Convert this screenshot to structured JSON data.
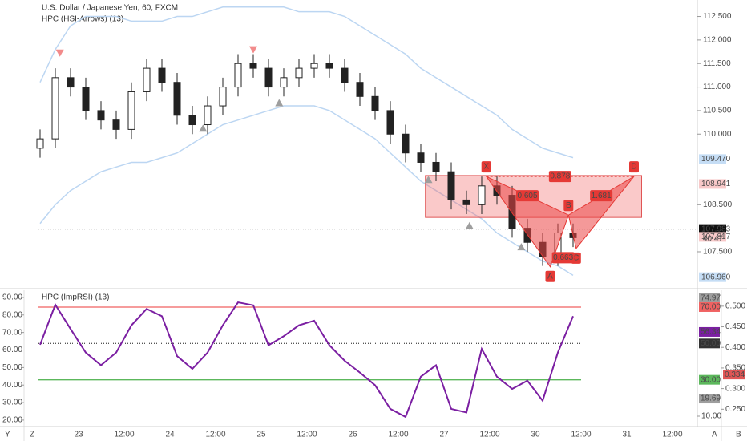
{
  "chart_data": [
    {
      "type": "candlestick",
      "title": "U.S. Dollar / Japanese Yen, 60, FXCM",
      "subtitle": "HPC (HSI-Arrows) (13)",
      "categories": [
        "23",
        "12:00",
        "24",
        "12:00",
        "25",
        "12:00",
        "26",
        "12:00",
        "27",
        "12:00",
        "30",
        "12:00",
        "31",
        "12:00"
      ],
      "ylim": [
        106.75,
        112.85
      ],
      "yticks": [
        {
          "value": 112.5,
          "label": "112.500"
        },
        {
          "value": 112,
          "label": "112.000"
        },
        {
          "value": 111.5,
          "label": "111.500"
        },
        {
          "value": 111,
          "label": "111.000"
        },
        {
          "value": 110.5,
          "label": "110.500"
        },
        {
          "value": 110,
          "label": "110.000"
        },
        {
          "value": 108.5,
          "label": "108.500"
        },
        {
          "value": 107.5,
          "label": "107.500"
        }
      ],
      "open": [
        109.7,
        109.9,
        111.2,
        111.0,
        110.5,
        110.3,
        110.1,
        110.9,
        111.4,
        111.1,
        110.4,
        110.2,
        110.6,
        111.0,
        111.5,
        111.4,
        111.0,
        111.2,
        111.4,
        111.5,
        111.4,
        111.1,
        110.8,
        110.5,
        110.0,
        109.6,
        109.4,
        109.2,
        108.6,
        108.5,
        108.9,
        108.7,
        108.0,
        107.7,
        107.4,
        107.9
      ],
      "high": [
        110.1,
        111.4,
        111.4,
        111.2,
        110.7,
        110.5,
        111.1,
        111.6,
        111.6,
        111.3,
        110.6,
        110.8,
        111.2,
        111.7,
        111.7,
        111.6,
        111.4,
        111.6,
        111.7,
        111.7,
        111.6,
        111.3,
        111.0,
        110.7,
        110.2,
        109.8,
        109.6,
        109.4,
        108.8,
        109.1,
        109.1,
        108.9,
        108.2,
        107.9,
        108.1,
        108.1
      ],
      "low": [
        109.5,
        109.7,
        110.8,
        110.3,
        110.1,
        109.9,
        109.9,
        110.7,
        110.9,
        110.2,
        110.0,
        110.0,
        110.4,
        110.8,
        111.2,
        110.8,
        110.8,
        111.0,
        111.2,
        111.2,
        110.9,
        110.6,
        110.3,
        109.8,
        109.4,
        109.2,
        109.0,
        108.4,
        108.3,
        108.3,
        108.5,
        107.8,
        107.5,
        107.2,
        107.2,
        107.6
      ],
      "close": [
        109.9,
        111.2,
        111.0,
        110.5,
        110.3,
        110.1,
        110.9,
        111.4,
        111.1,
        110.4,
        110.2,
        110.6,
        111.0,
        111.5,
        111.4,
        111.0,
        111.2,
        111.4,
        111.5,
        111.4,
        111.1,
        110.8,
        110.5,
        110.0,
        109.6,
        109.4,
        109.2,
        108.6,
        108.5,
        108.9,
        108.7,
        108.0,
        107.7,
        107.4,
        107.9,
        107.8
      ],
      "bands": [
        {
          "color": "#bcd6f2",
          "values": [
            111.1,
            111.8,
            112.3,
            112.5,
            112.5,
            112.5,
            112.4,
            112.4,
            112.4,
            112.5,
            112.5,
            112.6,
            112.7,
            112.7,
            112.7,
            112.7,
            112.7,
            112.6,
            112.6,
            112.6,
            112.5,
            112.3,
            112.1,
            111.9,
            111.7,
            111.4,
            111.2,
            111.0,
            110.8,
            110.6,
            110.4,
            110.1,
            109.9,
            109.7,
            109.6,
            109.5
          ]
        },
        {
          "color": "#bcd6f2",
          "values": [
            108.1,
            108.5,
            108.8,
            109.0,
            109.2,
            109.3,
            109.4,
            109.4,
            109.5,
            109.6,
            109.8,
            110.0,
            110.2,
            110.3,
            110.4,
            110.5,
            110.6,
            110.6,
            110.6,
            110.5,
            110.3,
            110.1,
            109.9,
            109.6,
            109.3,
            109.0,
            108.8,
            108.6,
            108.4,
            108.2,
            107.9,
            107.7,
            107.5,
            107.3,
            107.2,
            107.0
          ]
        }
      ],
      "sell_arrows": {
        "x": [
          1.3,
          14
        ],
        "y": [
          111.73,
          111.8
        ],
        "color": "#f28b8b"
      },
      "buy_arrows": {
        "x": [
          10.7,
          15.7,
          25.5,
          28.2,
          31.6
        ],
        "y": [
          110.12,
          110.66,
          109.03,
          108.05,
          107.6
        ],
        "color": "#9e9e9e"
      },
      "zone": {
        "x": [
          25.3,
          39.5
        ],
        "low": 108.23,
        "high": 109.12
      },
      "points": [
        {
          "name": "X",
          "x": 29.3,
          "y": 109.1
        },
        {
          "name": "A",
          "x": 33.5,
          "y": 107.18
        },
        {
          "name": "B",
          "x": 34.7,
          "y": 108.28
        },
        {
          "name": "C",
          "x": 35.2,
          "y": 107.57
        },
        {
          "name": "D",
          "x": 39,
          "y": 109.1
        }
      ],
      "ratios": [
        "0.605",
        "0.878",
        "1.681",
        "0.663"
      ],
      "last_price": 107.983,
      "badges": [
        {
          "value": 109.47,
          "label": "109.470",
          "color": "#c5ddf5"
        },
        {
          "value": 108.941,
          "label": "108.941",
          "color": "#f8c9c9"
        },
        {
          "value": 107.983,
          "label": "107.983",
          "color": "#111111"
        },
        {
          "value": 107.817,
          "label": "107.817",
          "color": "#f8c9c9"
        },
        {
          "value": 106.96,
          "label": "106.960",
          "color": "#c5ddf5"
        }
      ],
      "countdown": "40:47"
    },
    {
      "type": "line",
      "title": "HPC (ImpRSI) (13)",
      "ylim": [
        4.27,
        79.25
      ],
      "yticks": [
        {
          "value": 10,
          "label": "10.00"
        }
      ],
      "y2lim": [
        16.3,
        94.1
      ],
      "y2ticks": [
        {
          "value": 90,
          "label": "90.00"
        },
        {
          "value": 80,
          "label": "80.00"
        },
        {
          "value": 70,
          "label": "70.00"
        },
        {
          "value": 60,
          "label": "60.00"
        },
        {
          "value": 50,
          "label": "50.00"
        },
        {
          "value": 40,
          "label": "40.00"
        },
        {
          "value": 30,
          "label": "30.00"
        },
        {
          "value": 20,
          "label": "20.00"
        }
      ],
      "y3ticks": [
        {
          "value": 0.5,
          "label": "0.500"
        },
        {
          "value": 0.45,
          "label": "0.450"
        },
        {
          "value": 0.4,
          "label": "0.400"
        },
        {
          "value": 0.35,
          "label": "0.350"
        },
        {
          "value": 0.3,
          "label": "0.300"
        },
        {
          "value": 0.25,
          "label": "0.250"
        }
      ],
      "y3lim": [
        0.2078,
        0.5386
      ],
      "levels": [
        {
          "value": 70,
          "color": "#f06262"
        },
        {
          "value": 50,
          "color": "#555555"
        },
        {
          "value": 30,
          "color": "#5cb85c"
        }
      ],
      "series": [
        {
          "color": "#7b1fa2",
          "values": [
            49.3,
            71.3,
            58,
            45,
            38,
            45,
            60,
            69,
            65,
            43,
            36,
            45,
            60,
            72.6,
            71,
            49,
            54,
            60,
            62.5,
            49,
            40.5,
            34,
            27,
            14,
            9.6,
            31.7,
            38,
            14,
            12,
            47,
            31.7,
            25,
            29.5,
            18.5,
            45,
            65
          ]
        }
      ],
      "badges": [
        {
          "value": 74.97,
          "label": "74.97",
          "color": "#9e9e9e"
        },
        {
          "value": 70,
          "label": "70.00",
          "color": "#f06262"
        },
        {
          "value": 56.34,
          "label": "56.34",
          "color": "#7b1fa2"
        },
        {
          "value": 50,
          "label": "50.00",
          "color": "#333333"
        },
        {
          "value": 30,
          "label": "30.00",
          "color": "#5cb85c"
        },
        {
          "value": 19.69,
          "label": "19.69",
          "color": "#9e9e9e"
        }
      ],
      "badges3": [
        {
          "value": 0.334,
          "label": "0.334",
          "color": "#e05555"
        }
      ],
      "corner_labels": [
        "Y",
        "Z",
        "A",
        "B"
      ]
    }
  ]
}
